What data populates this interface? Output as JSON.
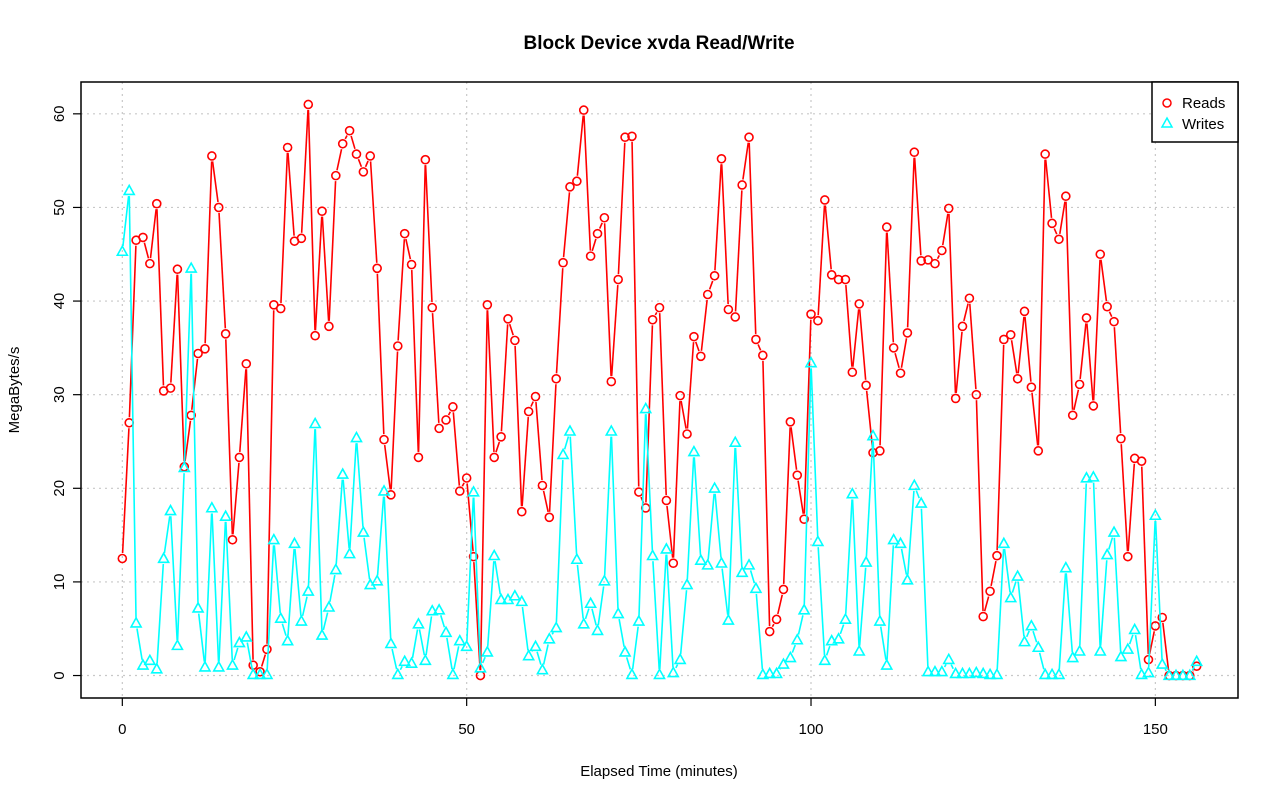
{
  "chart_data": {
    "type": "line",
    "title": "Block Device xvda Read/Write",
    "xlabel": "Elapsed Time (minutes)",
    "ylabel": "MegaBytes/s",
    "xlim": [
      -6,
      162
    ],
    "ylim": [
      -2.4,
      63.4
    ],
    "xticks": [
      0,
      50,
      100,
      150
    ],
    "yticks": [
      0,
      10,
      20,
      30,
      40,
      50,
      60
    ],
    "grid": true,
    "legend_position": "top-right",
    "x": [
      0,
      1,
      2,
      3,
      4,
      5,
      6,
      7,
      8,
      9,
      10,
      11,
      12,
      13,
      14,
      15,
      16,
      17,
      18,
      19,
      20,
      21,
      22,
      23,
      24,
      25,
      26,
      27,
      28,
      29,
      30,
      31,
      32,
      33,
      34,
      35,
      36,
      37,
      38,
      39,
      40,
      41,
      42,
      43,
      44,
      45,
      46,
      47,
      48,
      49,
      50,
      51,
      52,
      53,
      54,
      55,
      56,
      57,
      58,
      59,
      60,
      61,
      62,
      63,
      64,
      65,
      66,
      67,
      68,
      69,
      70,
      71,
      72,
      73,
      74,
      75,
      76,
      77,
      78,
      79,
      80,
      81,
      82,
      83,
      84,
      85,
      86,
      87,
      88,
      89,
      90,
      91,
      92,
      93,
      94,
      95,
      96,
      97,
      98,
      99,
      100,
      101,
      102,
      103,
      104,
      105,
      106,
      107,
      108,
      109,
      110,
      111,
      112,
      113,
      114,
      115,
      116,
      117,
      118,
      119,
      120,
      121,
      122,
      123,
      124,
      125,
      126,
      127,
      128,
      129,
      130,
      131,
      132,
      133,
      134,
      135,
      136,
      137,
      138,
      139,
      140,
      141,
      142,
      143,
      144,
      145,
      146,
      147,
      148,
      149,
      150,
      151,
      152,
      153,
      154,
      155,
      156
    ],
    "series": [
      {
        "name": "Reads",
        "color": "#ff0000",
        "marker": "circle",
        "values": [
          12.5,
          27,
          46.5,
          46.8,
          44,
          50.4,
          30.4,
          30.7,
          43.4,
          22.3,
          27.8,
          34.4,
          34.9,
          55.5,
          50,
          36.5,
          14.5,
          23.3,
          33.3,
          1.1,
          0.4,
          2.8,
          39.6,
          39.2,
          56.4,
          46.4,
          46.7,
          61,
          36.3,
          49.6,
          37.3,
          53.4,
          56.8,
          58.2,
          55.7,
          53.8,
          55.5,
          43.5,
          25.2,
          19.3,
          35.2,
          47.2,
          43.9,
          23.3,
          55.1,
          39.3,
          26.4,
          27.3,
          28.7,
          19.7,
          21.1,
          12.7,
          0,
          39.6,
          23.3,
          25.5,
          38.1,
          35.8,
          17.5,
          28.2,
          29.8,
          20.3,
          16.9,
          31.7,
          44.1,
          52.2,
          52.8,
          60.4,
          44.8,
          47.2,
          48.9,
          31.4,
          42.3,
          57.5,
          57.6,
          19.6,
          17.9,
          38,
          39.3,
          18.7,
          12,
          29.9,
          25.8,
          36.2,
          34.1,
          40.7,
          42.7,
          55.2,
          39.1,
          38.3,
          52.4,
          57.5,
          35.9,
          34.2,
          4.7,
          6,
          9.2,
          27.1,
          21.4,
          16.7,
          38.6,
          37.9,
          50.8,
          42.8,
          42.3,
          42.3,
          32.4,
          39.7,
          31,
          23.8,
          24,
          47.9,
          35,
          32.3,
          36.6,
          55.9,
          44.3,
          44.4,
          44,
          45.4,
          49.9,
          29.6,
          37.3,
          40.3,
          30,
          6.3,
          9,
          12.8,
          35.9,
          36.4,
          31.7,
          38.9,
          30.8,
          24,
          55.7,
          48.3,
          46.6,
          51.2,
          27.8,
          31.1,
          38.2,
          28.8,
          45,
          39.4,
          37.8,
          25.3,
          12.7,
          23.2,
          22.9,
          1.7,
          5.3,
          6.2,
          0,
          0,
          0,
          0,
          1
        ]
      },
      {
        "name": "Writes",
        "color": "#00ffff",
        "marker": "triangle",
        "values": [
          45.3,
          51.8,
          5.6,
          1.1,
          1.6,
          0.7,
          12.5,
          17.6,
          3.2,
          22.2,
          43.5,
          7.2,
          0.9,
          17.9,
          0.9,
          17,
          1.1,
          3.5,
          4.1,
          0.1,
          0.1,
          0.1,
          14.5,
          6.1,
          3.7,
          14.1,
          5.8,
          9,
          26.9,
          4.3,
          7.3,
          11.3,
          21.5,
          13,
          25.4,
          15.3,
          9.7,
          10.1,
          19.7,
          3.4,
          0.1,
          1.5,
          1.3,
          5.5,
          1.6,
          6.9,
          7,
          4.6,
          0.1,
          3.7,
          3.1,
          19.6,
          0.8,
          2.5,
          12.8,
          8.1,
          8.1,
          8.5,
          7.9,
          2.1,
          3.1,
          0.6,
          3.9,
          5.1,
          23.6,
          26.1,
          12.4,
          5.5,
          7.7,
          4.8,
          10.1,
          26.1,
          6.6,
          2.5,
          0.1,
          5.8,
          28.5,
          12.8,
          0.1,
          13.5,
          0.3,
          1.7,
          9.7,
          23.9,
          12.3,
          11.8,
          20,
          12,
          5.9,
          24.9,
          11,
          11.8,
          9.3,
          0.1,
          0.2,
          0.2,
          1.2,
          1.9,
          3.8,
          7,
          33.4,
          14.3,
          1.6,
          3.7,
          3.9,
          6,
          19.4,
          2.6,
          12.1,
          25.6,
          5.8,
          1.1,
          14.5,
          14.1,
          10.2,
          20.3,
          18.4,
          0.4,
          0.4,
          0.4,
          1.7,
          0.2,
          0.2,
          0.2,
          0.3,
          0.2,
          0.1,
          0.1,
          14.1,
          8.3,
          10.6,
          3.6,
          5.3,
          3,
          0.1,
          0.1,
          0.1,
          11.5,
          1.9,
          2.6,
          21.1,
          21.2,
          2.6,
          12.9,
          15.3,
          2,
          2.8,
          4.9,
          0.1,
          0.3,
          17.1,
          1.2,
          0,
          0,
          0,
          0,
          1.5
        ]
      }
    ]
  }
}
